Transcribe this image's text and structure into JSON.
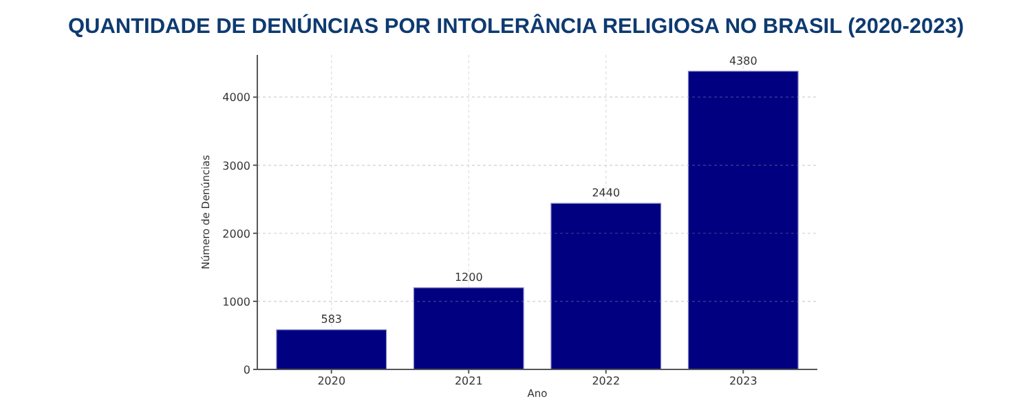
{
  "chart_data": {
    "type": "bar",
    "title": "QUANTIDADE DE DENÚNCIAS POR INTOLERÂNCIA RELIGIOSA NO BRASIL (2020-2023)",
    "xlabel": "Ano",
    "ylabel": "Número de Denúncias",
    "categories": [
      "2020",
      "2021",
      "2022",
      "2023"
    ],
    "values": [
      583,
      1200,
      2440,
      4380
    ],
    "color": "#000080",
    "ylim": [
      0,
      4620
    ],
    "yticks": [
      0,
      1000,
      2000,
      3000,
      4000
    ],
    "grid": true,
    "data_labels": true
  }
}
